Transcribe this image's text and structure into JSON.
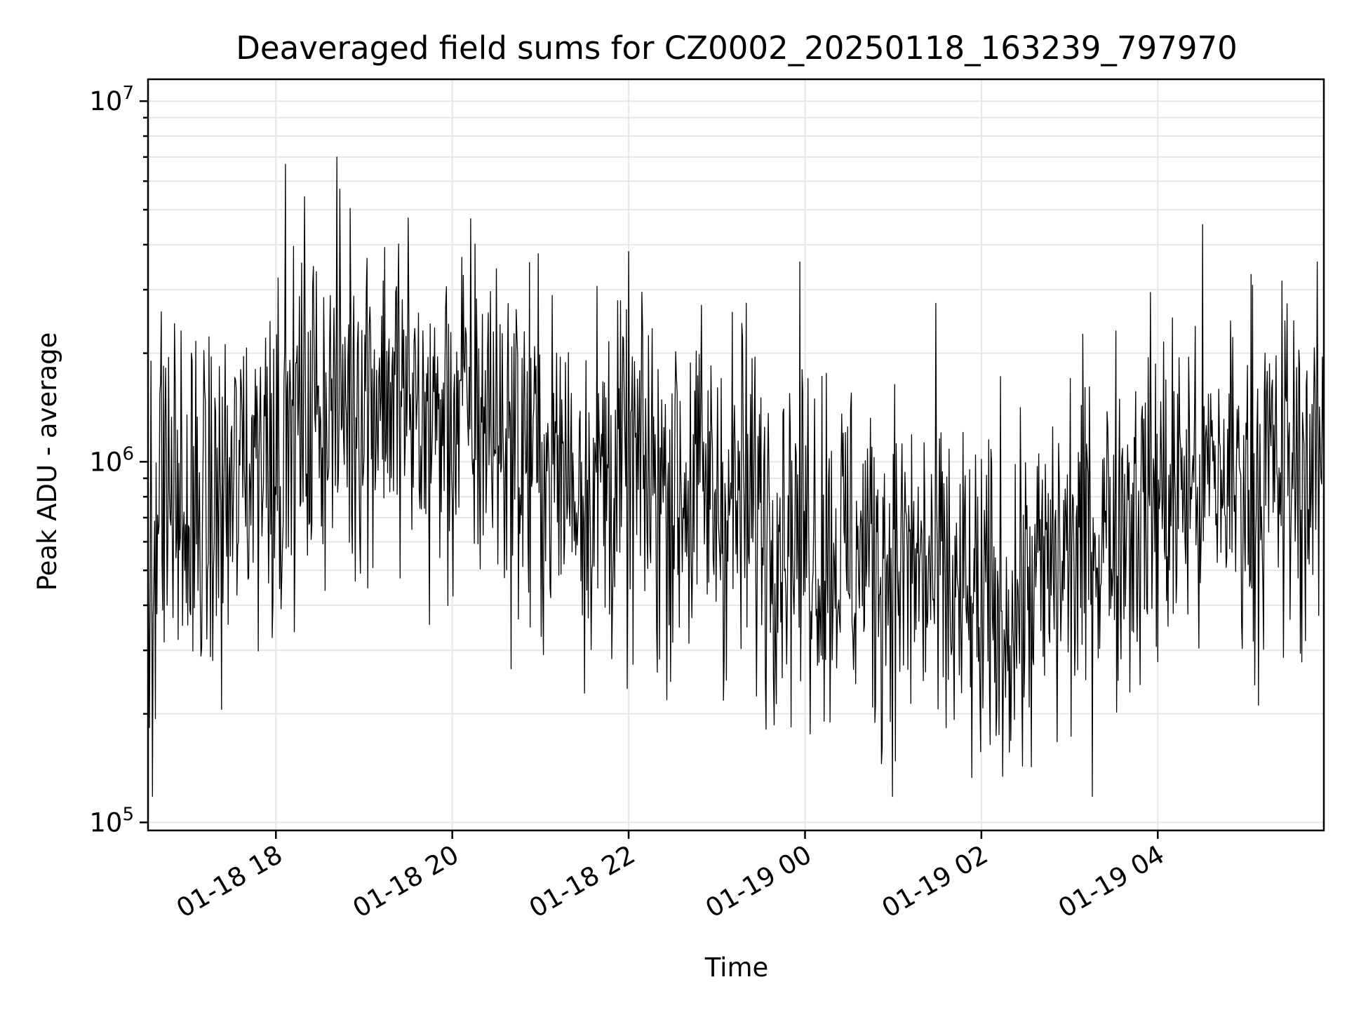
{
  "chart_data": {
    "type": "line",
    "title": "Deaveraged field sums for CZ0002_20250118_163239_797970",
    "xlabel": "Time",
    "ylabel": "Peak ADU - average",
    "y_scale": "log",
    "ylim": [
      95000,
      11500000
    ],
    "xlim": [
      "2025-01-18T16:33:00",
      "2025-01-19T05:53:00"
    ],
    "grid": true,
    "line_color": "#000000",
    "x_ticks": [
      {
        "label": "01-18 18",
        "value": "2025-01-18T18:00:00"
      },
      {
        "label": "01-18 20",
        "value": "2025-01-18T20:00:00"
      },
      {
        "label": "01-18 22",
        "value": "2025-01-18T22:00:00"
      },
      {
        "label": "01-19 00",
        "value": "2025-01-19T00:00:00"
      },
      {
        "label": "01-19 02",
        "value": "2025-01-19T02:00:00"
      },
      {
        "label": "01-19 04",
        "value": "2025-01-19T04:00:00"
      }
    ],
    "y_ticks": [
      {
        "base": "10",
        "exp": "5",
        "value": 100000
      },
      {
        "base": "10",
        "exp": "6",
        "value": 1000000
      },
      {
        "base": "10",
        "exp": "7",
        "value": 10000000
      }
    ],
    "series": [
      {
        "x_start": "2025-01-18T16:33:00",
        "x_end": "2025-01-19T05:53:00",
        "points": [
          [
            "2025-01-18T16:33:00",
            600000
          ],
          [
            "2025-01-18T16:45:00",
            900000
          ],
          [
            "2025-01-18T17:00:00",
            650000
          ],
          [
            "2025-01-18T17:15:00",
            700000
          ],
          [
            "2025-01-18T17:30:00",
            800000
          ],
          [
            "2025-01-18T17:45:00",
            1100000
          ],
          [
            "2025-01-18T18:00:00",
            1200000
          ],
          [
            "2025-01-18T18:15:00",
            1250000
          ],
          [
            "2025-01-18T18:30:00",
            1450000
          ],
          [
            "2025-01-18T18:45:00",
            1550000
          ],
          [
            "2025-01-18T19:00:00",
            1600000
          ],
          [
            "2025-01-18T19:15:00",
            1650000
          ],
          [
            "2025-01-18T19:30:00",
            1400000
          ],
          [
            "2025-01-18T19:45:00",
            1250000
          ],
          [
            "2025-01-18T20:00:00",
            1300000
          ],
          [
            "2025-01-18T20:15:00",
            1400000
          ],
          [
            "2025-01-18T20:30:00",
            1300000
          ],
          [
            "2025-01-18T20:45:00",
            1100000
          ],
          [
            "2025-01-18T21:00:00",
            1000000
          ],
          [
            "2025-01-18T21:15:00",
            950000
          ],
          [
            "2025-01-18T21:30:00",
            900000
          ],
          [
            "2025-01-18T21:45:00",
            920000
          ],
          [
            "2025-01-18T22:00:00",
            950000
          ],
          [
            "2025-01-18T22:15:00",
            900000
          ],
          [
            "2025-01-18T22:30:00",
            850000
          ],
          [
            "2025-01-18T22:45:00",
            850000
          ],
          [
            "2025-01-18T23:00:00",
            800000
          ],
          [
            "2025-01-18T23:15:00",
            780000
          ],
          [
            "2025-01-18T23:30:00",
            750000
          ],
          [
            "2025-01-18T23:45:00",
            700000
          ],
          [
            "2025-01-19T00:00:00",
            650000
          ],
          [
            "2025-01-19T00:15:00",
            600000
          ],
          [
            "2025-01-19T00:30:00",
            560000
          ],
          [
            "2025-01-19T00:45:00",
            540000
          ],
          [
            "2025-01-19T01:00:00",
            520000
          ],
          [
            "2025-01-19T01:15:00",
            500000
          ],
          [
            "2025-01-19T01:30:00",
            470000
          ],
          [
            "2025-01-19T01:45:00",
            400000
          ],
          [
            "2025-01-19T02:00:00",
            360000
          ],
          [
            "2025-01-19T02:15:00",
            380000
          ],
          [
            "2025-01-19T02:30:00",
            420000
          ],
          [
            "2025-01-19T02:45:00",
            480000
          ],
          [
            "2025-01-19T03:00:00",
            550000
          ],
          [
            "2025-01-19T03:15:00",
            620000
          ],
          [
            "2025-01-19T03:30:00",
            700000
          ],
          [
            "2025-01-19T03:45:00",
            760000
          ],
          [
            "2025-01-19T04:00:00",
            800000
          ],
          [
            "2025-01-19T04:15:00",
            850000
          ],
          [
            "2025-01-19T04:30:00",
            880000
          ],
          [
            "2025-01-19T04:45:00",
            900000
          ],
          [
            "2025-01-19T05:00:00",
            900000
          ],
          [
            "2025-01-19T05:15:00",
            920000
          ],
          [
            "2025-01-19T05:30:00",
            950000
          ],
          [
            "2025-01-19T05:53:00",
            950000
          ]
        ]
      }
    ]
  }
}
